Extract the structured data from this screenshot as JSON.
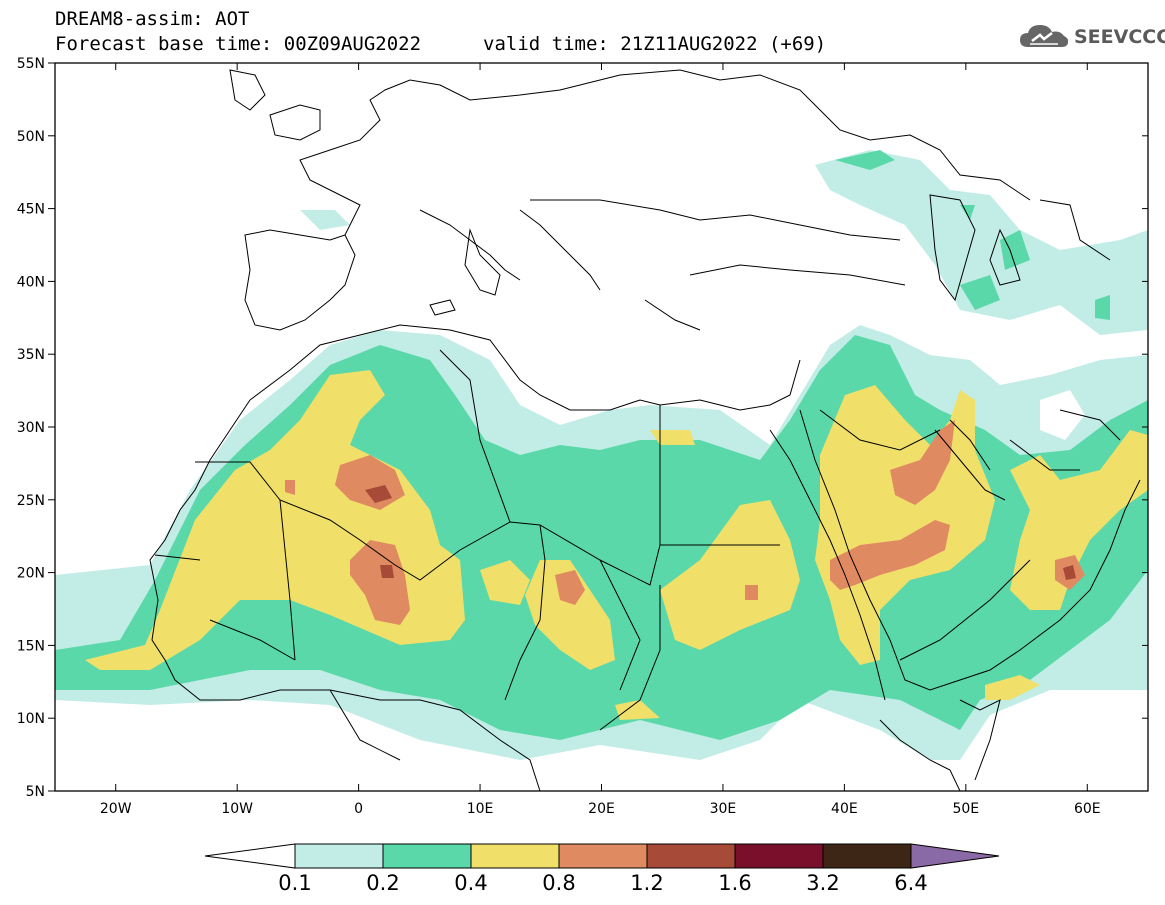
{
  "header": {
    "line1": "DREAM8-assim: AOT",
    "line2": "Forecast base time: 00Z09AUG2022",
    "valid": "valid time: 21Z11AUG2022 (+69)"
  },
  "logo": {
    "text": "SEEVCCC",
    "icon": "cloud-icon"
  },
  "map": {
    "lon_range": [
      -25,
      65
    ],
    "lat_range": [
      5,
      55
    ],
    "lat_ticks": [
      {
        "v": 55,
        "label": "55N"
      },
      {
        "v": 50,
        "label": "50N"
      },
      {
        "v": 45,
        "label": "45N"
      },
      {
        "v": 40,
        "label": "40N"
      },
      {
        "v": 35,
        "label": "35N"
      },
      {
        "v": 30,
        "label": "30N"
      },
      {
        "v": 25,
        "label": "25N"
      },
      {
        "v": 20,
        "label": "20N"
      },
      {
        "v": 15,
        "label": "15N"
      },
      {
        "v": 10,
        "label": "10N"
      },
      {
        "v": 5,
        "label": "5N"
      }
    ],
    "lon_ticks": [
      {
        "v": -20,
        "label": "20W"
      },
      {
        "v": -10,
        "label": "10W"
      },
      {
        "v": 0,
        "label": "0"
      },
      {
        "v": 10,
        "label": "10E"
      },
      {
        "v": 20,
        "label": "20E"
      },
      {
        "v": 30,
        "label": "30E"
      },
      {
        "v": 40,
        "label": "40E"
      },
      {
        "v": 50,
        "label": "50E"
      },
      {
        "v": 60,
        "label": "60E"
      }
    ]
  },
  "colorbar": {
    "labels": [
      "0.1",
      "0.2",
      "0.4",
      "0.8",
      "1.2",
      "1.6",
      "3.2",
      "6.4"
    ],
    "colors": [
      "#c2ede6",
      "#5ad8a9",
      "#f0e06a",
      "#e08a62",
      "#a84a38",
      "#7a0f2c",
      "#3e2616"
    ],
    "under_color": "#ffffff",
    "over_color": "#8a6aa6"
  }
}
